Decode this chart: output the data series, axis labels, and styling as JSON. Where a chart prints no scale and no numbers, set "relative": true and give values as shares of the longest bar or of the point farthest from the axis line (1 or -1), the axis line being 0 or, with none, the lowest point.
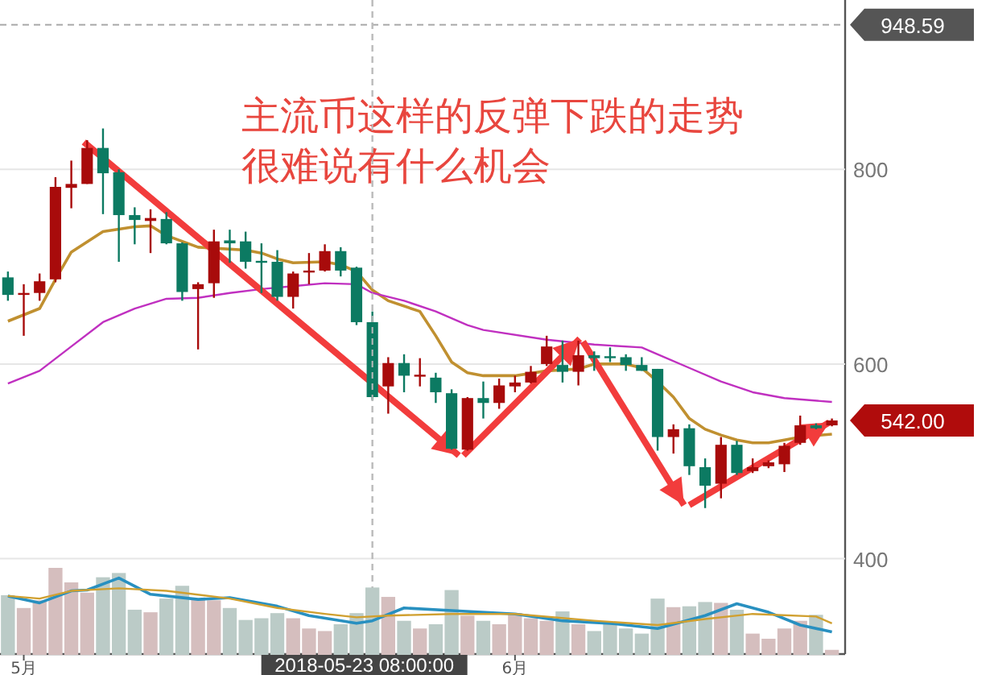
{
  "chart_data": [
    {
      "type": "candlestick",
      "xlim": [
        "2018-04-29T12:00",
        "2018-06-21T20:00"
      ],
      "ylim": [
        302,
        974
      ],
      "yticks": [
        400,
        600,
        800
      ],
      "grid": "y",
      "tick_labels": "y",
      "x": [
        "2018-04-30",
        "2018-05-01",
        "2018-05-02",
        "2018-05-03",
        "2018-05-04",
        "2018-05-05",
        "2018-05-06",
        "2018-05-07",
        "2018-05-08",
        "2018-05-09",
        "2018-05-10",
        "2018-05-11",
        "2018-05-12",
        "2018-05-13",
        "2018-05-14",
        "2018-05-15",
        "2018-05-16",
        "2018-05-17",
        "2018-05-18",
        "2018-05-19",
        "2018-05-20",
        "2018-05-21",
        "2018-05-22",
        "2018-05-23",
        "2018-05-24",
        "2018-05-25",
        "2018-05-26",
        "2018-05-27",
        "2018-05-28",
        "2018-05-29",
        "2018-05-30",
        "2018-05-31",
        "2018-06-01",
        "2018-06-02",
        "2018-06-03",
        "2018-06-04",
        "2018-06-05",
        "2018-06-06",
        "2018-06-07",
        "2018-06-08",
        "2018-06-09",
        "2018-06-10",
        "2018-06-11",
        "2018-06-12",
        "2018-06-13",
        "2018-06-14",
        "2018-06-15",
        "2018-06-16",
        "2018-06-17",
        "2018-06-18",
        "2018-06-19",
        "2018-06-20",
        "2018-06-21"
      ],
      "ohlc": [
        [
          689,
          695,
          665,
          671
        ],
        [
          671,
          682,
          629,
          673
        ],
        [
          673,
          693,
          665,
          685
        ],
        [
          687,
          792,
          684,
          782
        ],
        [
          781,
          809,
          760,
          785
        ],
        [
          785,
          830,
          785,
          822
        ],
        [
          822,
          842,
          754,
          796
        ],
        [
          797,
          800,
          705,
          753
        ],
        [
          753,
          761,
          723,
          748
        ],
        [
          747,
          759,
          714,
          750
        ],
        [
          749,
          756,
          723,
          724
        ],
        [
          724,
          725,
          665,
          674
        ],
        [
          677,
          684,
          615,
          682
        ],
        [
          683,
          738,
          668,
          726
        ],
        [
          727,
          738,
          704,
          724
        ],
        [
          726,
          736,
          698,
          705
        ],
        [
          706,
          724,
          673,
          705
        ],
        [
          705,
          717,
          665,
          669
        ],
        [
          669,
          695,
          657,
          693
        ],
        [
          694,
          714,
          682,
          696
        ],
        [
          696,
          723,
          695,
          716
        ],
        [
          716,
          720,
          690,
          696
        ],
        [
          699,
          700,
          640,
          643
        ],
        [
          643,
          654,
          563,
          566
        ],
        [
          577,
          607,
          549,
          601
        ],
        [
          601,
          610,
          571,
          588
        ],
        [
          587,
          606,
          577,
          589
        ],
        [
          586,
          591,
          560,
          571
        ],
        [
          570,
          574,
          512,
          513
        ],
        [
          512,
          566,
          511,
          565
        ],
        [
          565,
          582,
          544,
          560
        ],
        [
          560,
          585,
          554,
          578
        ],
        [
          577,
          588,
          571,
          581
        ],
        [
          581,
          598,
          580,
          592
        ],
        [
          600,
          629,
          598,
          618
        ],
        [
          599,
          624,
          581,
          592
        ],
        [
          592,
          624,
          578,
          609
        ],
        [
          609,
          613,
          593,
          606
        ],
        [
          608,
          617,
          602,
          607
        ],
        [
          607,
          610,
          593,
          599
        ],
        [
          599,
          607,
          593,
          593
        ],
        [
          595,
          595,
          511,
          525
        ],
        [
          525,
          538,
          508,
          533
        ],
        [
          534,
          538,
          486,
          495
        ],
        [
          494,
          503,
          452,
          475
        ],
        [
          477,
          525,
          462,
          517
        ],
        [
          517,
          521,
          486,
          488
        ],
        [
          490,
          503,
          488,
          494
        ],
        [
          495,
          501,
          493,
          499
        ],
        [
          497,
          519,
          489,
          516
        ],
        [
          519,
          547,
          517,
          537
        ],
        [
          537,
          539,
          533,
          534
        ],
        [
          537,
          544,
          536,
          542
        ]
      ],
      "colors": [
        "#0c7a62",
        "#a80b0b",
        "#a80b0b",
        "#a80b0b",
        "#a80b0b",
        "#a80b0b",
        "#0c7a62",
        "#0c7a62",
        "#0c7a62",
        "#a80b0b",
        "#0c7a62",
        "#0c7a62",
        "#a80b0b",
        "#a80b0b",
        "#0c7a62",
        "#0c7a62",
        "#0c7a62",
        "#0c7a62",
        "#a80b0b",
        "#a80b0b",
        "#a80b0b",
        "#0c7a62",
        "#0c7a62",
        "#0c7a62",
        "#a80b0b",
        "#0c7a62",
        "#a80b0b",
        "#0c7a62",
        "#0c7a62",
        "#a80b0b",
        "#0c7a62",
        "#a80b0b",
        "#a80b0b",
        "#a80b0b",
        "#a80b0b",
        "#0c7a62",
        "#a80b0b",
        "#0c7a62",
        "#0c7a62",
        "#0c7a62",
        "#0c7a62",
        "#0c7a62",
        "#a80b0b",
        "#0c7a62",
        "#0c7a62",
        "#a80b0b",
        "#0c7a62",
        "#a80b0b",
        "#a80b0b",
        "#a80b0b",
        "#a80b0b",
        "#0c7a62",
        "#a80b0b"
      ],
      "series": [
        {
          "type": "line",
          "color": "#c09030",
          "x": [
            "2018-04-30",
            "2018-05-02",
            "2018-05-03",
            "2018-05-04",
            "2018-05-06",
            "2018-05-08",
            "2018-05-09",
            "2018-05-10",
            "2018-05-12",
            "2018-05-13",
            "2018-05-15",
            "2018-05-16",
            "2018-05-17",
            "2018-05-18",
            "2018-05-20",
            "2018-05-21",
            "2018-05-22",
            "2018-05-23",
            "2018-05-24",
            "2018-05-26",
            "2018-05-27",
            "2018-05-28",
            "2018-05-29",
            "2018-05-30",
            "2018-06-01",
            "2018-06-03",
            "2018-06-05",
            "2018-06-06",
            "2018-06-08",
            "2018-06-09",
            "2018-06-10",
            "2018-06-11",
            "2018-06-12",
            "2018-06-13",
            "2018-06-14",
            "2018-06-15",
            "2018-06-16",
            "2018-06-17",
            "2018-06-18",
            "2018-06-19",
            "2018-06-21"
          ],
          "values": [
            644,
            657,
            687,
            715,
            736,
            741,
            742,
            732,
            720,
            719,
            717,
            714,
            708,
            704,
            705,
            702,
            695,
            676,
            665,
            654,
            629,
            602,
            591,
            588,
            588,
            593,
            595,
            600,
            600,
            596,
            582,
            566,
            544,
            533,
            527,
            522,
            519,
            519,
            522,
            525,
            528
          ]
        },
        {
          "type": "line",
          "color": "#c030c0",
          "x": [
            "2018-04-30",
            "2018-05-02",
            "2018-05-04",
            "2018-05-06",
            "2018-05-08",
            "2018-05-10",
            "2018-05-12",
            "2018-05-14",
            "2018-05-16",
            "2018-05-18",
            "2018-05-20",
            "2018-05-22",
            "2018-05-23",
            "2018-05-25",
            "2018-05-27",
            "2018-05-29",
            "2018-05-30",
            "2018-06-03",
            "2018-06-06",
            "2018-06-09",
            "2018-06-10",
            "2018-06-12",
            "2018-06-14",
            "2018-06-16",
            "2018-06-18",
            "2018-06-21"
          ],
          "values": [
            580,
            593,
            618,
            643,
            657,
            667,
            668,
            673,
            677,
            680,
            683,
            682,
            673,
            665,
            654,
            640,
            635,
            625,
            620,
            617,
            610,
            596,
            582,
            571,
            565,
            561
          ]
        },
        {
          "type": "line",
          "color": "#f23c3c",
          "x": [
            "2018-05-04T19:00",
            "2018-05-28T11:00"
          ],
          "values": [
            828,
            506
          ]
        },
        {
          "type": "line",
          "color": "#f23c3c",
          "x": [
            "2018-05-28T18:00",
            "2018-06-05T02:00"
          ],
          "values": [
            506,
            626
          ]
        },
        {
          "type": "line",
          "color": "#f23c3c",
          "x": [
            "2018-06-05T07:00",
            "2018-06-11T16:00"
          ],
          "values": [
            623,
            455
          ]
        },
        {
          "type": "line",
          "color": "#f23c3c",
          "x": [
            "2018-06-12T00:00",
            "2018-06-20T20:00"
          ],
          "values": [
            455,
            540
          ]
        }
      ],
      "ref_lines": [
        {
          "axis": "y",
          "value": 948.59,
          "label": "948.59",
          "color": "#555555",
          "line_style": "dashed"
        },
        {
          "axis": "x",
          "value": "2018-05-23",
          "color": "#bbbbbb",
          "line_style": "dashed"
        }
      ],
      "annotations": [
        "主流币这样的反弹下跌的走势",
        "很难说有什么机会",
        {
          "text": "542.00",
          "x": "2018-06-21",
          "y": 542
        }
      ]
    },
    {
      "type": "bar",
      "relative": true,
      "xlim": [
        "2018-04-29T12:00",
        "2018-06-21T20:00"
      ],
      "xticks": [
        {
          "value": "2018-05-01",
          "label": "5月"
        },
        {
          "value": "2018-06-01",
          "label": "6月"
        }
      ],
      "tick_labels": "x",
      "grid": false,
      "series": [
        {
          "type": "bar",
          "x": [
            "2018-04-30",
            "2018-05-01",
            "2018-05-02",
            "2018-05-03",
            "2018-05-04",
            "2018-05-05",
            "2018-05-06",
            "2018-05-07",
            "2018-05-08",
            "2018-05-09",
            "2018-05-10",
            "2018-05-11",
            "2018-05-12",
            "2018-05-13",
            "2018-05-14",
            "2018-05-15",
            "2018-05-16",
            "2018-05-17",
            "2018-05-18",
            "2018-05-19",
            "2018-05-20",
            "2018-05-21",
            "2018-05-22",
            "2018-05-23",
            "2018-05-24",
            "2018-05-25",
            "2018-05-26",
            "2018-05-27",
            "2018-05-28",
            "2018-05-29",
            "2018-05-30",
            "2018-05-31",
            "2018-06-01",
            "2018-06-02",
            "2018-06-03",
            "2018-06-04",
            "2018-06-05",
            "2018-06-06",
            "2018-06-07",
            "2018-06-08",
            "2018-06-09",
            "2018-06-10",
            "2018-06-11",
            "2018-06-12",
            "2018-06-13",
            "2018-06-14",
            "2018-06-15",
            "2018-06-16",
            "2018-06-17",
            "2018-06-18",
            "2018-06-19",
            "2018-06-20",
            "2018-06-21"
          ],
          "values": [
            0.68,
            0.53,
            0.62,
            1,
            0.83,
            0.71,
            0.89,
            0.94,
            0.51,
            0.48,
            0.64,
            0.79,
            0.64,
            0.62,
            0.53,
            0.39,
            0.41,
            0.47,
            0.41,
            0.29,
            0.26,
            0.34,
            0.47,
            0.77,
            0.66,
            0.38,
            0.29,
            0.34,
            0.74,
            0.44,
            0.38,
            0.34,
            0.47,
            0.41,
            0.38,
            0.49,
            0.34,
            0.26,
            0.34,
            0.29,
            0.23,
            0.64,
            0.54,
            0.55,
            0.6,
            0.59,
            0.51,
            0.23,
            0.17,
            0.29,
            0.38,
            0.45,
            0.04
          ],
          "colors": [
            "#dcefea",
            "#fbe0e0",
            "#fbe0e0",
            "#fbe0e0",
            "#fbe0e0",
            "#fbe0e0",
            "#dcefea",
            "#dcefea",
            "#dcefea",
            "#fbe0e0",
            "#dcefea",
            "#dcefea",
            "#fbe0e0",
            "#fbe0e0",
            "#dcefea",
            "#dcefea",
            "#dcefea",
            "#dcefea",
            "#fbe0e0",
            "#fbe0e0",
            "#fbe0e0",
            "#dcefea",
            "#dcefea",
            "#dcefea",
            "#fbe0e0",
            "#dcefea",
            "#fbe0e0",
            "#dcefea",
            "#dcefea",
            "#fbe0e0",
            "#dcefea",
            "#fbe0e0",
            "#fbe0e0",
            "#fbe0e0",
            "#fbe0e0",
            "#dcefea",
            "#fbe0e0",
            "#dcefea",
            "#dcefea",
            "#dcefea",
            "#dcefea",
            "#dcefea",
            "#fbe0e0",
            "#dcefea",
            "#dcefea",
            "#fbe0e0",
            "#dcefea",
            "#fbe0e0",
            "#fbe0e0",
            "#fbe0e0",
            "#fbe0e0",
            "#dcefea",
            "#fbe0e0"
          ]
        },
        {
          "type": "line",
          "color": "#2890c0",
          "x": [
            "2018-04-30",
            "2018-05-02",
            "2018-05-04",
            "2018-05-05",
            "2018-05-07",
            "2018-05-09",
            "2018-05-12",
            "2018-05-14",
            "2018-05-17",
            "2018-05-19",
            "2018-05-22",
            "2018-05-23",
            "2018-05-25",
            "2018-05-28",
            "2018-06-01",
            "2018-06-04",
            "2018-06-07",
            "2018-06-10",
            "2018-06-13",
            "2018-06-15",
            "2018-06-17",
            "2018-06-19",
            "2018-06-21"
          ],
          "values": [
            0.68,
            0.6,
            0.74,
            0.75,
            0.89,
            0.7,
            0.64,
            0.66,
            0.56,
            0.45,
            0.36,
            0.39,
            0.54,
            0.51,
            0.47,
            0.39,
            0.36,
            0.3,
            0.45,
            0.59,
            0.49,
            0.34,
            0.26
          ]
        },
        {
          "type": "line",
          "color": "#d0a030",
          "x": [
            "2018-04-30",
            "2018-05-02",
            "2018-05-04",
            "2018-05-07",
            "2018-05-10",
            "2018-05-14",
            "2018-05-17",
            "2018-05-20",
            "2018-05-22",
            "2018-05-24",
            "2018-05-28",
            "2018-06-01",
            "2018-06-06",
            "2018-06-10",
            "2018-06-13",
            "2018-06-16",
            "2018-06-20",
            "2018-06-21"
          ],
          "values": [
            0.68,
            0.65,
            0.74,
            0.77,
            0.74,
            0.65,
            0.54,
            0.47,
            0.43,
            0.45,
            0.47,
            0.47,
            0.39,
            0.34,
            0.41,
            0.47,
            0.44,
            0.36
          ]
        }
      ],
      "ref_lines": [
        {
          "axis": "x",
          "value": "2018-05-23",
          "label": "2018-05-23 08:00:00",
          "color": "#bbbbbb",
          "line_style": "dashed"
        }
      ]
    }
  ]
}
